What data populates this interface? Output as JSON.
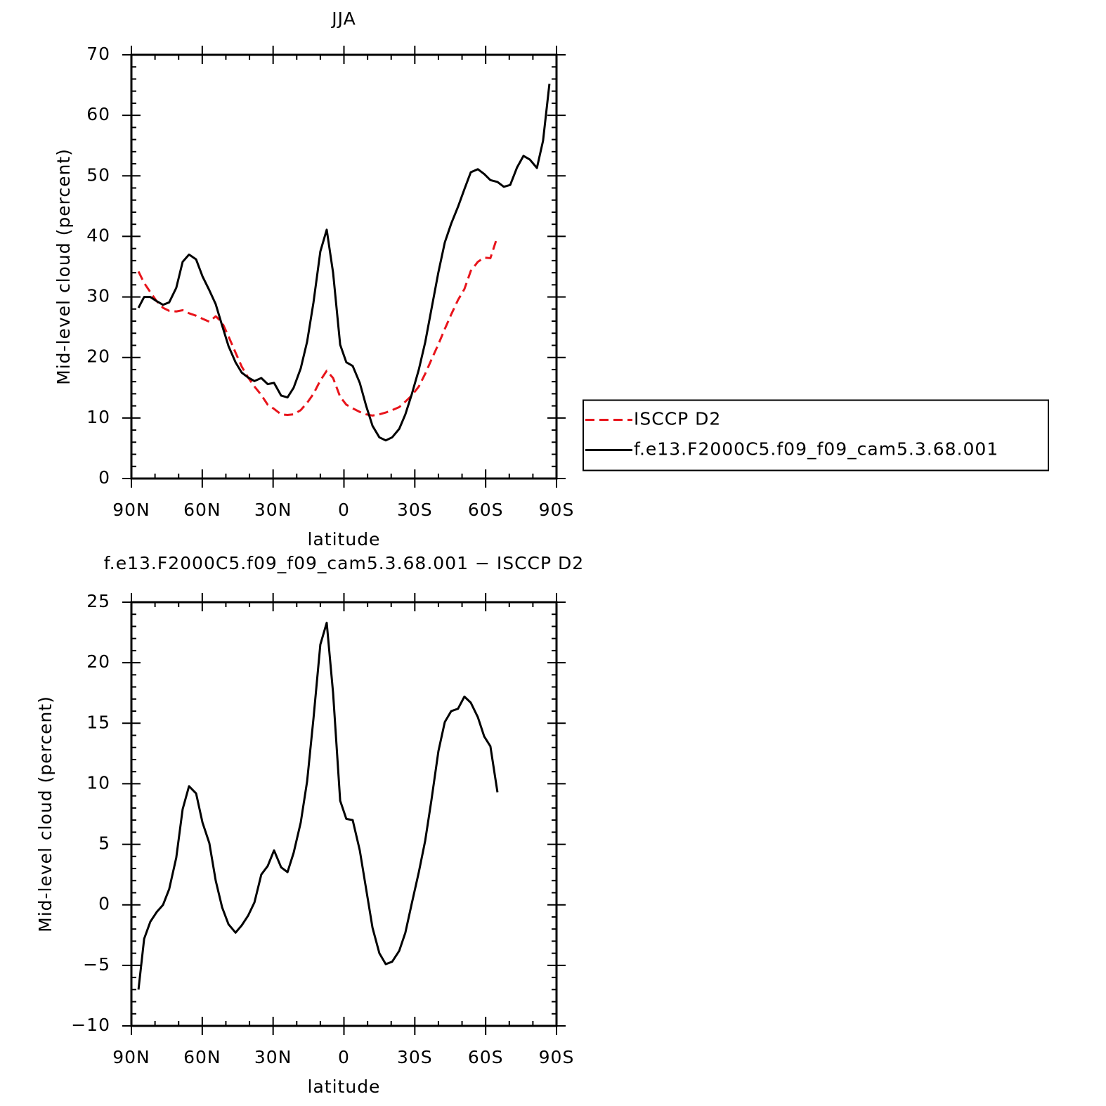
{
  "chart_data": [
    {
      "type": "line",
      "title": "JJA",
      "xlabel": "latitude",
      "ylabel": "Mid-level cloud (percent)",
      "xlim": [
        90,
        -90
      ],
      "xticks": [
        {
          "value": 90,
          "label": "90N"
        },
        {
          "value": 60,
          "label": "60N"
        },
        {
          "value": 30,
          "label": "30N"
        },
        0,
        {
          "value": -30,
          "label": "30S"
        },
        {
          "value": -60,
          "label": "60S"
        },
        {
          "value": -90,
          "label": "90S"
        }
      ],
      "ylim": [
        0,
        70
      ],
      "yticks": [
        0,
        10,
        20,
        30,
        40,
        50,
        60,
        70
      ],
      "legend": "right",
      "x": [
        87.0,
        84.6,
        82.0,
        79.3,
        76.6,
        74.0,
        71.0,
        68.3,
        65.6,
        62.6,
        59.9,
        57.0,
        54.3,
        51.6,
        48.9,
        45.9,
        43.3,
        40.6,
        37.9,
        35.0,
        32.3,
        29.6,
        26.6,
        23.9,
        21.3,
        18.3,
        15.6,
        12.9,
        10.0,
        7.3,
        4.6,
        1.6,
        -1.0,
        -3.7,
        -6.7,
        -9.4,
        -12.1,
        -15.0,
        -17.7,
        -20.4,
        -23.4,
        -26.0,
        -28.7,
        -31.7,
        -34.4,
        -37.0,
        -40.0,
        -42.7,
        -45.4,
        -48.3,
        -51.0,
        -53.7,
        -56.7,
        -59.4,
        -62.0,
        -65.0,
        -67.7,
        -70.4,
        -73.3,
        -76.0,
        -78.7,
        -81.7,
        -84.3,
        -87.0
      ],
      "series": [
        {
          "name": "ISCCP D2",
          "color": "#e8141b",
          "dashed": true,
          "values": [
            34.2,
            32.3,
            30.8,
            29.3,
            28.2,
            27.7,
            27.6,
            27.8,
            27.3,
            26.9,
            26.4,
            25.9,
            26.8,
            25.8,
            23.5,
            20.8,
            18.5,
            16.7,
            15.2,
            13.8,
            12.2,
            11.5,
            10.6,
            10.5,
            10.6,
            11.3,
            12.5,
            14.0,
            16.2,
            17.8,
            16.6,
            13.5,
            12.2,
            11.6,
            11.0,
            10.6,
            10.4,
            10.6,
            10.9,
            11.3,
            11.8,
            12.7,
            13.7,
            15.2,
            17.3,
            19.6,
            22.2,
            24.7,
            27.1,
            29.5,
            31.3,
            34.3,
            35.8,
            36.5,
            36.4,
            40.0,
            null,
            null,
            null,
            null,
            null,
            null,
            null,
            null
          ]
        },
        {
          "name": "f.e13.F2000C5.f09_f09_cam5.3.68.001",
          "color": "#000000",
          "dashed": false,
          "values": [
            28.2,
            30.0,
            30.0,
            29.3,
            28.7,
            29.1,
            31.5,
            35.8,
            37.0,
            36.2,
            33.4,
            31.1,
            28.8,
            25.3,
            21.9,
            19.2,
            17.5,
            16.7,
            16.1,
            16.6,
            15.6,
            15.8,
            13.7,
            13.4,
            15.0,
            18.2,
            22.6,
            29.1,
            37.5,
            41.1,
            34.0,
            22.1,
            19.2,
            18.6,
            15.8,
            12.0,
            8.7,
            6.8,
            6.3,
            6.8,
            8.2,
            10.6,
            13.9,
            18.0,
            22.5,
            27.9,
            34.1,
            39.0,
            42.1,
            44.9,
            47.8,
            50.6,
            51.1,
            50.3,
            49.3,
            49.0,
            48.2,
            48.5,
            51.4,
            53.3,
            52.7,
            51.3,
            55.8,
            65.2
          ]
        }
      ]
    },
    {
      "type": "line",
      "title": "f.e13.F2000C5.f09_f09_cam5.3.68.001 − ISCCP D2",
      "xlabel": "latitude",
      "ylabel": "Mid-level cloud (percent)",
      "xlim": [
        90,
        -90
      ],
      "xticks": [
        {
          "value": 90,
          "label": "90N"
        },
        {
          "value": 60,
          "label": "60N"
        },
        {
          "value": 30,
          "label": "30N"
        },
        0,
        {
          "value": -30,
          "label": "30S"
        },
        {
          "value": -60,
          "label": "60S"
        },
        {
          "value": -90,
          "label": "90S"
        }
      ],
      "ylim": [
        -10,
        25
      ],
      "yticks": [
        {
          "value": -10,
          "label": "−10"
        },
        {
          "value": -5,
          "label": "−5"
        },
        0,
        5,
        10,
        15,
        20,
        25
      ],
      "x": [
        87.0,
        84.6,
        82.0,
        79.3,
        76.6,
        74.0,
        71.0,
        68.3,
        65.6,
        62.6,
        59.9,
        57.0,
        54.3,
        51.6,
        48.9,
        45.9,
        43.3,
        40.6,
        37.9,
        35.0,
        32.3,
        29.6,
        26.6,
        23.9,
        21.3,
        18.3,
        15.6,
        12.9,
        10.0,
        7.3,
        4.6,
        1.6,
        -1.0,
        -3.7,
        -6.7,
        -9.4,
        -12.1,
        -15.0,
        -17.7,
        -20.4,
        -23.4,
        -26.0,
        -28.7,
        -31.7,
        -34.4,
        -37.0,
        -40.0,
        -42.7,
        -45.4,
        -48.3,
        -51.0,
        -53.7,
        -56.7,
        -59.4,
        -62.0,
        -65.0
      ],
      "series": [
        {
          "color": "#000000",
          "dashed": false,
          "values": [
            -7.0,
            -2.8,
            -1.4,
            -0.6,
            0.0,
            1.3,
            3.9,
            7.9,
            9.8,
            9.2,
            6.8,
            5.1,
            2.0,
            -0.2,
            -1.6,
            -2.3,
            -1.7,
            -0.9,
            0.2,
            2.5,
            3.2,
            4.5,
            3.1,
            2.7,
            4.3,
            6.8,
            10.2,
            15.4,
            21.5,
            23.3,
            17.5,
            8.6,
            7.1,
            7.0,
            4.5,
            1.3,
            -1.9,
            -4.0,
            -4.9,
            -4.7,
            -3.8,
            -2.3,
            0.1,
            2.7,
            5.3,
            8.6,
            12.7,
            15.1,
            16.0,
            16.2,
            17.2,
            16.7,
            15.5,
            13.9,
            13.1,
            9.3
          ]
        }
      ]
    }
  ]
}
